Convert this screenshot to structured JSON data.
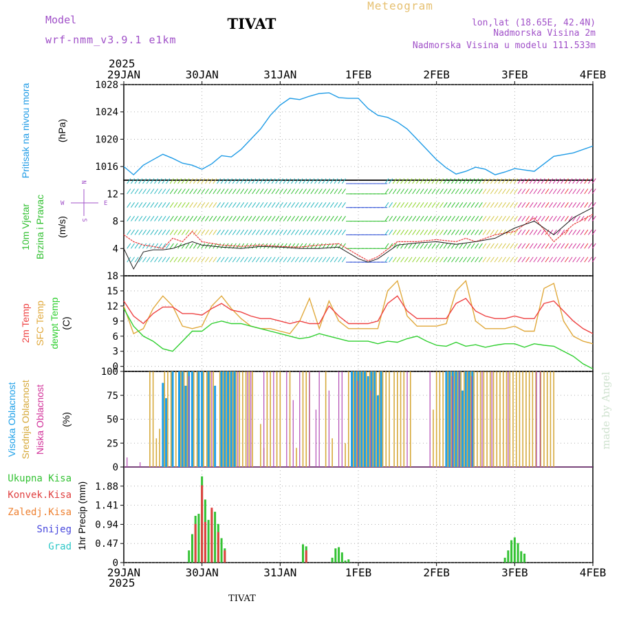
{
  "header": {
    "model_label": "Model",
    "model_name": "wrf-nmm_v3.9.1 e1km",
    "station_title": "TIVAT",
    "chart_title": "Meteogram",
    "lonlat": "lon,lat (18.65E, 42.4N)",
    "altitude": "Nadmorska Visina 2m",
    "model_altitude": "Nadmorska Visina u modelu 111.533m"
  },
  "footer": {
    "station": "TIVAT",
    "credit": "made by Angel"
  },
  "colors": {
    "pressure": "#1e9be6",
    "wind_teal": "#2ab8c0",
    "wind_green": "#2fbf2f",
    "wind_lime": "#8ed42a",
    "wind_yellow": "#d6c84a",
    "wind_blue": "#2e4fd6",
    "wind_magenta": "#d2329a",
    "wind_red": "#e83b3b",
    "temp2m": "#ee4040",
    "sfc": "#e0a83a",
    "dewpt": "#2fcf2f",
    "cloud_high": "#1ea0e8",
    "cloud_mid": "#d6a93a",
    "cloud_low": "#b24ab4",
    "precip_total": "#33c233",
    "precip_conv": "#e04040",
    "frozen": "#ee8030",
    "snow": "#4848dd",
    "hail": "#2ec8c8",
    "axis": "#000000",
    "grid": "#999999"
  },
  "chart_data": [
    {
      "type": "line",
      "id": "pressure",
      "ylabel": "Pritisak na nivou mora",
      "unit": "(hPa)",
      "ylim": [
        1014,
        1028
      ],
      "yticks": [
        "1016",
        "1020",
        "1024",
        "1028"
      ],
      "x_hours": [
        0,
        3,
        6,
        9,
        12,
        15,
        18,
        21,
        24,
        27,
        30,
        33,
        36,
        39,
        42,
        45,
        48,
        51,
        54,
        57,
        60,
        63,
        66,
        69,
        72,
        75,
        78,
        81,
        84,
        87,
        90,
        96,
        99,
        102,
        105,
        108,
        111,
        114,
        117,
        120,
        126,
        132,
        138,
        144
      ],
      "series": [
        {
          "values": [
            1016.0,
            1014.8,
            1016.2,
            1017.0,
            1017.8,
            1017.2,
            1016.5,
            1016.2,
            1015.6,
            1016.4,
            1017.6,
            1017.4,
            1018.5,
            1020.0,
            1021.5,
            1023.5,
            1025.0,
            1026.0,
            1025.8,
            1026.3,
            1026.7,
            1026.8,
            1026.1,
            1026.0,
            1026.0,
            1024.5,
            1023.5,
            1023.2,
            1022.5,
            1021.5,
            1020.0,
            1017.0,
            1015.8,
            1014.9,
            1015.3,
            1015.9,
            1015.6,
            1014.8,
            1015.2,
            1015.7,
            1015.3,
            1017.5,
            1018.0,
            1019.0
          ]
        }
      ]
    },
    {
      "type": "line",
      "id": "wind",
      "ylabel_1": "10m Vjetar",
      "ylabel_2": "Brzina i Pravac",
      "unit": "(m/s)",
      "compass": {
        "n": "N",
        "w": "W",
        "e": "E",
        "s": "S"
      },
      "ylim": [
        0,
        14
      ],
      "yticks": [
        "4",
        "8",
        "12"
      ],
      "x_hours": [
        0,
        3,
        6,
        9,
        12,
        15,
        18,
        21,
        24,
        30,
        36,
        42,
        48,
        54,
        60,
        66,
        72,
        75,
        78,
        84,
        90,
        96,
        102,
        105,
        108,
        114,
        120,
        126,
        132,
        138,
        144
      ],
      "series": [
        {
          "values": [
            6.0,
            5.0,
            4.5,
            4.3,
            4.0,
            5.5,
            5.0,
            6.5,
            5.0,
            4.5,
            4.3,
            4.5,
            4.3,
            4.2,
            4.5,
            4.7,
            3.0,
            2.2,
            2.8,
            5.0,
            5.0,
            5.3,
            5.0,
            5.5,
            5.0,
            6.0,
            6.5,
            8.5,
            5.0,
            7.5,
            9.0
          ]
        },
        {
          "values": [
            4.0,
            1.0,
            3.5,
            3.8,
            3.8,
            4.0,
            4.5,
            5.0,
            4.5,
            4.2,
            4.0,
            4.3,
            4.2,
            4.0,
            4.0,
            4.2,
            2.5,
            2.0,
            2.5,
            4.5,
            4.8,
            5.0,
            4.6,
            4.8,
            5.0,
            5.5,
            7.0,
            8.0,
            6.0,
            8.5,
            10.0
          ]
        }
      ]
    },
    {
      "type": "line",
      "id": "temperature",
      "ylabel_1": "2m Temp",
      "ylabel_2": "SFC Temp",
      "ylabel_3": "dewpt Temp",
      "unit": "(C)",
      "ylim": [
        -1,
        18
      ],
      "yticks": [
        "0",
        "3",
        "6",
        "9",
        "12",
        "15",
        "18"
      ],
      "x_hours": [
        0,
        3,
        6,
        9,
        12,
        15,
        18,
        21,
        24,
        27,
        30,
        33,
        36,
        39,
        42,
        45,
        48,
        51,
        54,
        57,
        60,
        63,
        66,
        69,
        72,
        75,
        78,
        81,
        84,
        87,
        90,
        93,
        96,
        99,
        102,
        105,
        108,
        111,
        114,
        117,
        120,
        123,
        126,
        129,
        132,
        135,
        138,
        141,
        144
      ],
      "series": [
        {
          "name": "2m Temp",
          "values": [
            13,
            10,
            8.5,
            10.5,
            11.8,
            11.8,
            10.5,
            10.5,
            10.2,
            11.5,
            12.5,
            11.2,
            10.8,
            10.0,
            9.5,
            9.5,
            9.0,
            8.5,
            9.0,
            8.5,
            8.5,
            12.0,
            10.0,
            8.5,
            8.5,
            8.5,
            9.0,
            12.5,
            14.0,
            11.0,
            9.5,
            9.5,
            9.5,
            9.5,
            12.5,
            13.5,
            11.0,
            10.0,
            9.5,
            9.5,
            10.0,
            9.5,
            9.5,
            12.5,
            13.0,
            11.0,
            9.0,
            7.5,
            6.5
          ]
        },
        {
          "name": "SFC Temp",
          "values": [
            12,
            6.5,
            7.5,
            11.5,
            14,
            12,
            8,
            7.5,
            8.0,
            12.0,
            14.0,
            11.5,
            9.5,
            8.0,
            7.5,
            7.5,
            7.0,
            6.5,
            9.0,
            13.5,
            7.5,
            13.0,
            9.0,
            7.5,
            7.5,
            7.5,
            7.5,
            15.0,
            17.0,
            10.0,
            8.0,
            8.0,
            8.0,
            8.5,
            15.0,
            17.0,
            9.0,
            7.5,
            7.5,
            7.5,
            8.0,
            7.0,
            7.0,
            15.5,
            16.5,
            9.0,
            6.0,
            5.0,
            4.5
          ]
        },
        {
          "name": "dewpt Temp",
          "values": [
            11.5,
            8.0,
            6.0,
            5.0,
            3.5,
            3.0,
            5.0,
            7.0,
            7.0,
            8.5,
            9.0,
            8.5,
            8.5,
            8.0,
            7.5,
            7.0,
            6.5,
            6.0,
            5.5,
            5.8,
            6.5,
            6.0,
            5.5,
            5.0,
            5.0,
            5.0,
            4.5,
            5.0,
            4.8,
            5.5,
            6.0,
            5.0,
            4.2,
            4.0,
            4.8,
            4.0,
            4.3,
            3.8,
            4.2,
            4.5,
            4.5,
            3.8,
            4.5,
            4.2,
            4.0,
            3.0,
            2.0,
            0.5,
            -0.5
          ]
        }
      ]
    },
    {
      "type": "bar",
      "id": "clouds",
      "ylabel_1": "Visoka Oblacnost",
      "ylabel_2": "Srednja Oblacnost",
      "ylabel_3": "Niska Oblacnost",
      "unit": "(%)",
      "ylim": [
        0,
        100
      ],
      "yticks": [
        "0",
        "25",
        "50",
        "75",
        "100"
      ],
      "series": [
        {
          "name": "high",
          "hours": [
            12,
            13,
            15,
            17,
            18,
            19,
            20,
            21,
            23,
            24,
            26,
            28,
            30,
            31,
            32,
            33,
            34,
            70,
            71,
            72,
            73,
            74,
            75,
            76,
            77,
            78,
            79,
            99,
            100,
            101,
            102,
            103,
            104,
            105,
            106,
            107
          ],
          "values": [
            88,
            72,
            100,
            100,
            100,
            85,
            100,
            100,
            100,
            100,
            100,
            85,
            100,
            100,
            100,
            100,
            100,
            100,
            100,
            100,
            100,
            100,
            95,
            100,
            100,
            75,
            100,
            100,
            100,
            100,
            100,
            100,
            80,
            100,
            100,
            100
          ]
        },
        {
          "name": "mid",
          "hours": [
            8,
            9,
            10,
            11,
            12.5,
            13.5,
            14.5,
            16,
            17.5,
            18.5,
            19.5,
            21.5,
            22.5,
            24.5,
            25.5,
            26.5,
            27.5,
            29.5,
            30.5,
            31.5,
            32.5,
            33.5,
            34.5,
            35.5,
            36.5,
            37.5,
            38.5,
            39.5,
            42,
            43,
            44,
            45,
            47,
            48,
            51,
            53,
            55,
            56,
            57,
            62,
            64,
            68,
            69,
            70.5,
            71.5,
            72.5,
            73.5,
            74.5,
            75.5,
            76.5,
            77.5,
            78.5,
            79.5,
            80.5,
            81.5,
            83,
            84,
            85,
            86,
            88,
            95,
            96,
            97,
            98,
            99.5,
            100.5,
            101.5,
            102.5,
            103.5,
            104.5,
            105.5,
            106.5,
            107.5,
            108.5,
            109.5,
            110.5,
            111.5,
            112.5,
            113.5,
            114.5,
            115.5,
            116.5,
            117.5,
            118.5,
            119.5,
            120.5,
            121.5,
            122.5,
            123.5,
            124.5,
            125.5,
            126.5,
            128,
            129,
            130,
            131,
            132
          ],
          "values": [
            100,
            100,
            30,
            40,
            100,
            100,
            100,
            100,
            100,
            100,
            100,
            100,
            100,
            100,
            100,
            100,
            100,
            100,
            100,
            100,
            100,
            100,
            100,
            100,
            100,
            100,
            100,
            100,
            45,
            20,
            100,
            100,
            100,
            100,
            100,
            20,
            100,
            100,
            100,
            100,
            30,
            25,
            100,
            100,
            100,
            100,
            100,
            100,
            100,
            100,
            100,
            100,
            100,
            100,
            100,
            100,
            100,
            100,
            100,
            100,
            60,
            100,
            100,
            100,
            100,
            100,
            100,
            100,
            100,
            100,
            100,
            100,
            100,
            100,
            100,
            100,
            100,
            100,
            100,
            100,
            100,
            100,
            100,
            100,
            100,
            100,
            100,
            100,
            100,
            100,
            100,
            100,
            100,
            100,
            100,
            100,
            100
          ]
        },
        {
          "name": "low",
          "hours": [
            1,
            5,
            20,
            27,
            35,
            38,
            39,
            43,
            46,
            50,
            52,
            54,
            57,
            59,
            60,
            63,
            66,
            67,
            71.8,
            75.8,
            87,
            94,
            100.8,
            103,
            106.8,
            110,
            113,
            118,
            126.7,
            127.8
          ],
          "values": [
            10,
            5,
            95,
            100,
            100,
            100,
            100,
            100,
            100,
            100,
            70,
            100,
            100,
            60,
            100,
            80,
            100,
            100,
            90,
            80,
            100,
            100,
            95,
            100,
            95,
            100,
            100,
            100,
            100,
            100
          ]
        }
      ]
    },
    {
      "type": "bar",
      "id": "precip",
      "ylabel": "1hr Precip (mm)",
      "legend": [
        "Ukupna Kisa",
        "Konvek.Kisa",
        "Zaledj.Kisa",
        "Snijeg",
        "Grad"
      ],
      "ylim": [
        0,
        2.35
      ],
      "yticks": [
        "0",
        "0.47",
        "0.94",
        "1.41",
        "1.88"
      ],
      "series": [
        {
          "name": "Ukupna Kisa",
          "hours": [
            20,
            21,
            22,
            23,
            24,
            25,
            26,
            27,
            28,
            29,
            30,
            31,
            55,
            56,
            64,
            65,
            66,
            67,
            68,
            69,
            117,
            118,
            119,
            120,
            121,
            122,
            123
          ],
          "values": [
            0.3,
            0.7,
            1.15,
            1.2,
            2.12,
            1.55,
            1.05,
            1.3,
            1.25,
            0.95,
            0.6,
            0.35,
            0.45,
            0.4,
            0.12,
            0.35,
            0.38,
            0.25,
            0.05,
            0.08,
            0.12,
            0.3,
            0.55,
            0.62,
            0.48,
            0.28,
            0.22
          ]
        },
        {
          "name": "Konvek.Kisa",
          "hours": [
            22,
            24,
            25,
            27,
            29,
            31,
            56
          ],
          "values": [
            0.95,
            1.9,
            1.0,
            1.35,
            0.75,
            0.3,
            0.3
          ]
        }
      ]
    }
  ],
  "xaxis": {
    "year_top": "2025",
    "year_bottom": "2025",
    "labels": [
      "29JAN",
      "30JAN",
      "31JAN",
      "1FEB",
      "2FEB",
      "3FEB",
      "4FEB"
    ]
  }
}
